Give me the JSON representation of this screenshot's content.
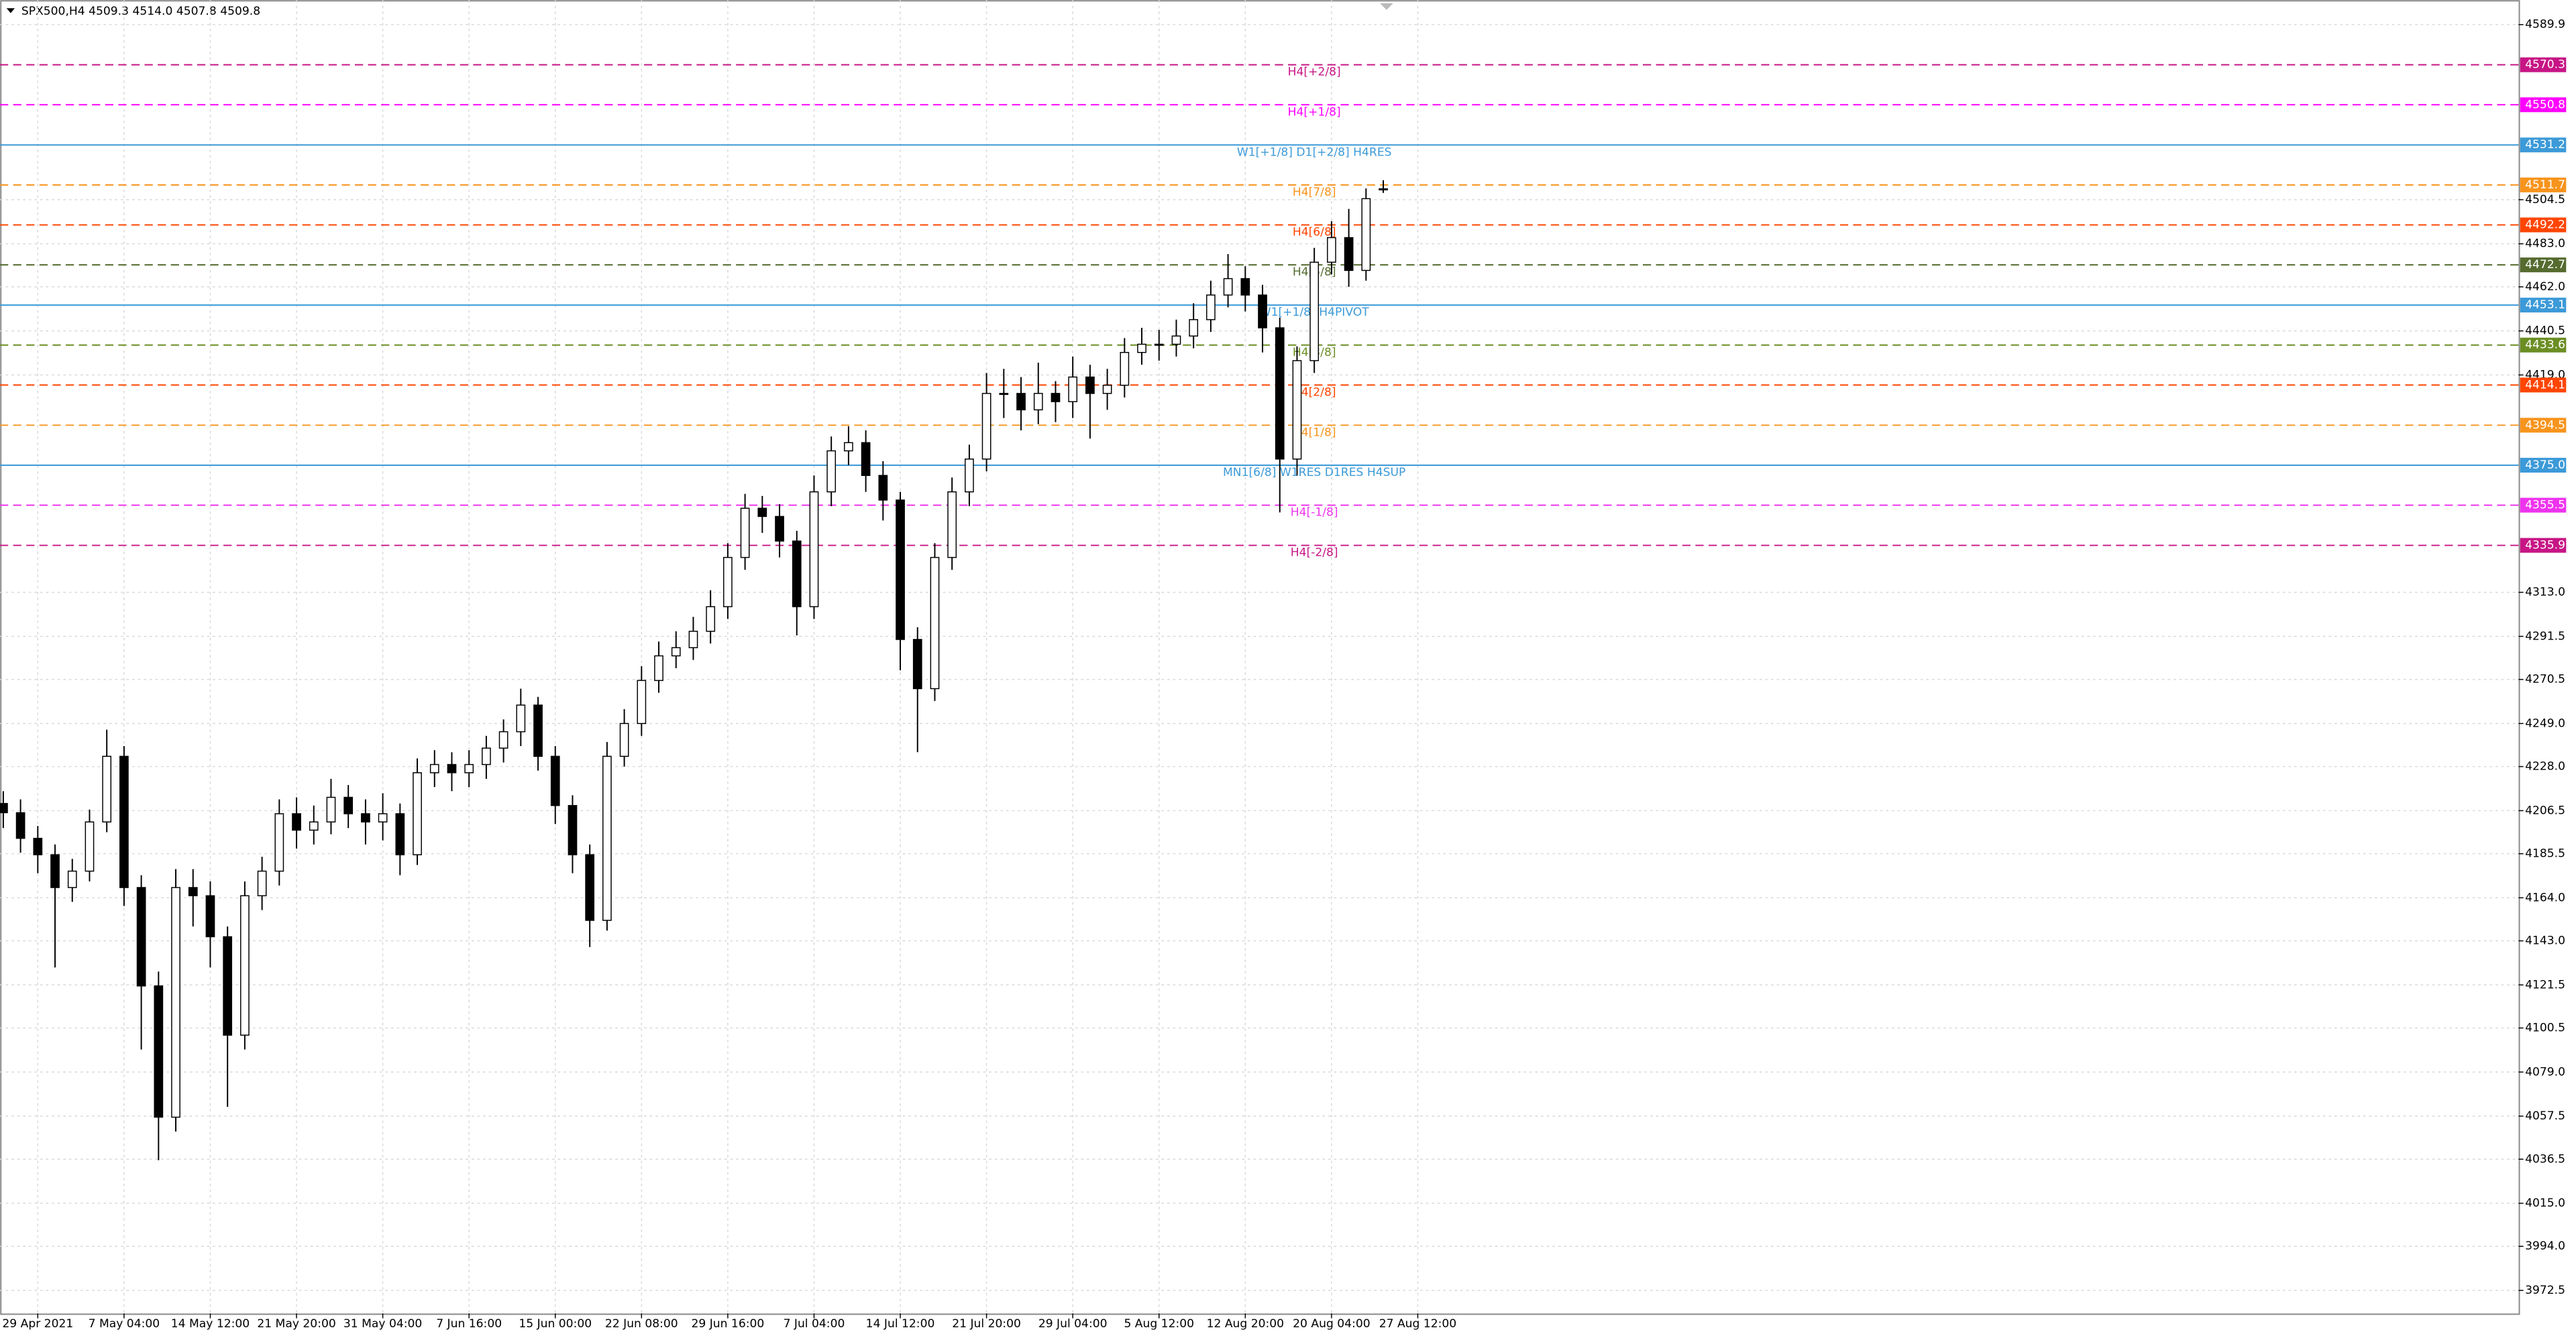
{
  "chart_data": {
    "type": "candlestick",
    "title": "SPX500,H4  4509.3 4514.0 4507.8 4509.8",
    "categories": [
      null,
      null,
      "29 Apr 2021",
      null,
      null,
      null,
      null,
      "7 May 04:00",
      null,
      null,
      null,
      null,
      "14 May 12:00",
      null,
      null,
      null,
      null,
      "21 May 20:00",
      null,
      null,
      null,
      null,
      "31 May 04:00",
      null,
      null,
      null,
      null,
      "7 Jun 16:00",
      null,
      null,
      null,
      null,
      "15 Jun 00:00",
      null,
      null,
      null,
      null,
      "22 Jun 08:00",
      null,
      null,
      null,
      null,
      "29 Jun 16:00",
      null,
      null,
      null,
      null,
      "7 Jul 04:00",
      null,
      null,
      null,
      null,
      "14 Jul 12:00",
      null,
      null,
      null,
      null,
      "21 Jul 20:00",
      null,
      null,
      null,
      null,
      "29 Jul 04:00",
      null,
      null,
      null,
      null,
      "5 Aug 12:00",
      null,
      null,
      null,
      null,
      "12 Aug 20:00",
      null,
      null,
      null,
      null,
      "20 Aug 04:00",
      null,
      null,
      null,
      null,
      "27 Aug 12:00"
    ],
    "open": [
      4210,
      4205.5,
      4193,
      4185,
      4169,
      4177,
      4201,
      4233,
      4169,
      4121,
      4057,
      4169,
      4165,
      4145,
      4097,
      4165,
      4177,
      4205,
      4197,
      4201,
      4213,
      4205,
      4201,
      4205,
      4185,
      4225,
      4229,
      4225,
      4229,
      4237,
      4245,
      4258,
      4233,
      4209,
      4185,
      4153,
      4233,
      4249,
      4270,
      4282,
      4286,
      4294,
      4306,
      4330,
      4354,
      4350,
      4338,
      4306,
      4362,
      4382,
      4386,
      4370,
      4358,
      4290,
      4266,
      4330,
      4362,
      4378,
      4410,
      4410,
      4402,
      4410,
      4406,
      4418,
      4410,
      4414,
      4430,
      4434,
      4434,
      4438,
      4446,
      4458,
      4466,
      4458,
      4442,
      4378,
      4426,
      4474,
      4486,
      4470,
      4509.3,
      null,
      null
    ],
    "high": [
      4216,
      4212,
      4199,
      4190,
      4183,
      4207,
      4246,
      4238,
      4175,
      4128,
      4178,
      4178,
      4172,
      4150,
      4172,
      4184,
      4212,
      4213,
      4209,
      4222,
      4219,
      4212,
      4215,
      4210,
      4232,
      4236,
      4235,
      4236,
      4243,
      4251,
      4266,
      4262,
      4238,
      4214,
      4190,
      4240,
      4256,
      4277,
      4289,
      4294,
      4301,
      4314,
      4337,
      4361,
      4360,
      4356,
      4343,
      4370,
      4389,
      4394,
      4392,
      4377,
      4362,
      4296,
      4337,
      4369,
      4385,
      4420,
      4422,
      4418,
      4425,
      4416,
      4428,
      4424,
      4422,
      4437,
      4442,
      4441,
      4446,
      4454,
      4465,
      4478,
      4472,
      4463,
      4447,
      4433,
      4481,
      4494,
      4500,
      4510,
      4514.0,
      null,
      null
    ],
    "low": [
      4198,
      4186,
      4176,
      4130,
      4162,
      4172,
      4196,
      4160,
      4090,
      4036,
      4050,
      4150,
      4130,
      4062,
      4090,
      4158,
      4170,
      4188,
      4190,
      4195,
      4198,
      4190,
      4192,
      4175,
      4180,
      4218,
      4216,
      4218,
      4222,
      4230,
      4238,
      4226,
      4200,
      4176,
      4140,
      4148,
      4228,
      4243,
      4264,
      4276,
      4280,
      4288,
      4300,
      4324,
      4342,
      4330,
      4292,
      4300,
      4355,
      4375,
      4362,
      4348,
      4275,
      4235,
      4260,
      4324,
      4355,
      4372,
      4398,
      4392,
      4395,
      4396,
      4398,
      4388,
      4402,
      4408,
      4424,
      4426,
      4428,
      4432,
      4440,
      4452,
      4450,
      4430,
      4352,
      4370,
      4420,
      4468,
      4462,
      4465,
      4507.8,
      null,
      null
    ],
    "close": [
      4205.5,
      4193,
      4185,
      4169,
      4177,
      4201,
      4233,
      4169,
      4121,
      4057,
      4169,
      4165,
      4145,
      4097,
      4165,
      4177,
      4205,
      4197,
      4201,
      4213,
      4205,
      4201,
      4205,
      4185,
      4225,
      4229,
      4225,
      4229,
      4237,
      4245,
      4258,
      4233,
      4209,
      4185,
      4153,
      4233,
      4249,
      4270,
      4282,
      4286,
      4294,
      4306,
      4330,
      4354,
      4350,
      4338,
      4306,
      4362,
      4382,
      4386,
      4370,
      4358,
      4290,
      4266,
      4330,
      4362,
      4378,
      4410,
      4410,
      4402,
      4410,
      4406,
      4418,
      4410,
      4414,
      4430,
      4434,
      4434,
      4438,
      4446,
      4458,
      4466,
      4458,
      4442,
      4378,
      4426,
      4474,
      4486,
      4470,
      4505,
      4509.8,
      null,
      null
    ],
    "ylim": [
      3961.3,
      4601.9
    ],
    "yticks": [
      4589.9,
      4504.5,
      {
        "value": 4483,
        "label": "4483.0"
      },
      {
        "value": 4462,
        "label": "4462.0"
      },
      4440.5,
      {
        "value": 4419,
        "label": "4419.0"
      },
      {
        "value": 4313,
        "label": "4313.0"
      },
      4291.5,
      4270.5,
      {
        "value": 4249,
        "label": "4249.0"
      },
      {
        "value": 4228,
        "label": "4228.0"
      },
      4206.5,
      4185.5,
      {
        "value": 4164,
        "label": "4164.0"
      },
      {
        "value": 4143,
        "label": "4143.0"
      },
      4121.5,
      4100.5,
      {
        "value": 4079,
        "label": "4079.0"
      },
      4057.5,
      4036.5,
      {
        "value": 4015,
        "label": "4015.0"
      },
      {
        "value": 3994,
        "label": "3994.0"
      },
      3972.5
    ],
    "grid": true,
    "levels": [
      {
        "price": 4570.3,
        "text": "H4[+2/8]",
        "color": "#c71585",
        "style": "dashed"
      },
      {
        "price": 4550.8,
        "text": "H4[+1/8]",
        "color": "#ff00ff",
        "style": "dashed"
      },
      {
        "price": 4531.2,
        "text": "W1[+1/8] D1[+2/8] H4RES",
        "color": "#3c9ad8",
        "style": "solid"
      },
      {
        "price": 4511.7,
        "text": "H4[7/8]",
        "color": "#f7941d",
        "style": "dashed"
      },
      {
        "price": 4492.2,
        "text": "H4[6/8]",
        "color": "#ff4500",
        "style": "dashed"
      },
      {
        "price": 4472.7,
        "text": "H4[5/8]",
        "color": "#556b2f",
        "style": "dashed"
      },
      {
        "price": 4453.1,
        "text": "W1[+1/8] H4PIVOT",
        "color": "#3c9ad8",
        "style": "solid"
      },
      {
        "price": 4433.6,
        "text": "H4[3/8]",
        "color": "#6b8e23",
        "style": "dashed"
      },
      {
        "price": 4414.1,
        "text": "H4[2/8]",
        "color": "#ff4500",
        "style": "dashed"
      },
      {
        "price": 4394.5,
        "text": "H4[1/8]",
        "color": "#f7941d",
        "style": "dashed"
      },
      {
        "price": 4375,
        "price_label": "4375.0",
        "text": "MN1[6/8] W1RES D1RES H4SUP",
        "color": "#3c9ad8",
        "style": "solid"
      },
      {
        "price": 4355.5,
        "text": "H4[-1/8]",
        "color": "#ee33ee",
        "style": "dashed"
      },
      {
        "price": 4335.9,
        "text": "H4[-2/8]",
        "color": "#c71585",
        "style": "dashed"
      }
    ]
  }
}
